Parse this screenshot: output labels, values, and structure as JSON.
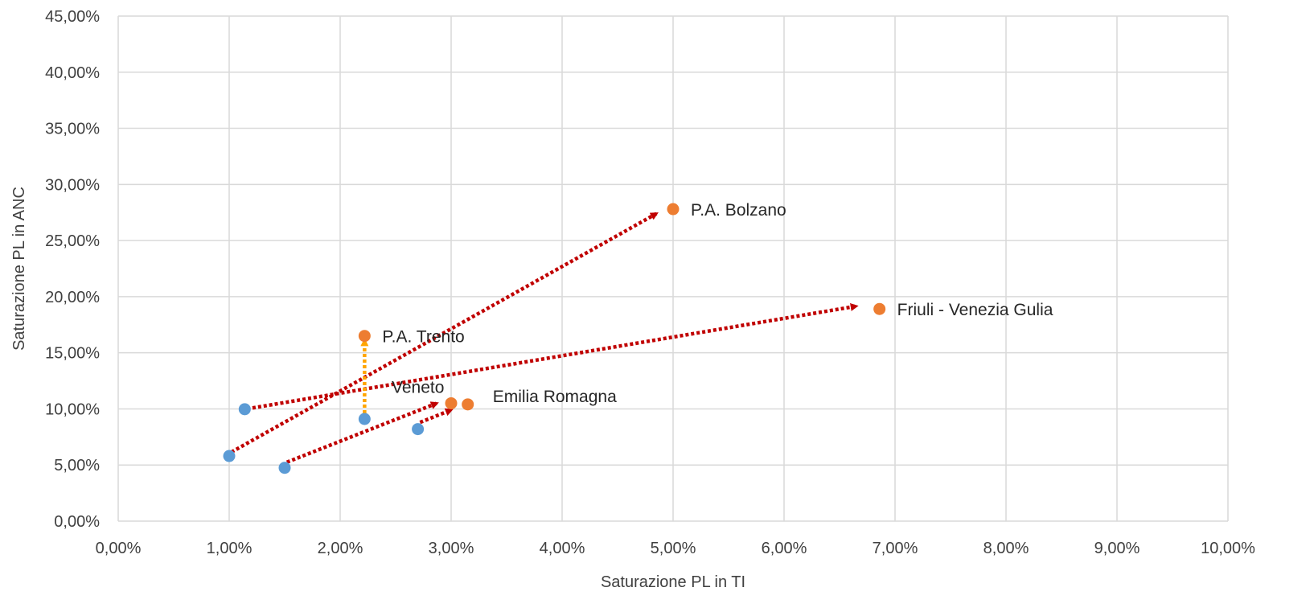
{
  "chart_data": {
    "type": "scatter",
    "title": "",
    "xlabel": "Saturazione PL in TI",
    "ylabel": "Saturazione PL in ANC",
    "xlim": [
      0,
      0.1
    ],
    "ylim": [
      0,
      0.45
    ],
    "x_ticks": [
      "0,00%",
      "1,00%",
      "2,00%",
      "3,00%",
      "4,00%",
      "5,00%",
      "6,00%",
      "7,00%",
      "8,00%",
      "9,00%",
      "10,00%"
    ],
    "y_ticks": [
      "0,00%",
      "5,00%",
      "10,00%",
      "15,00%",
      "20,00%",
      "25,00%",
      "30,00%",
      "35,00%",
      "40,00%",
      "45,00%"
    ],
    "grid": true,
    "legend": "none",
    "colors": {
      "series_1": "#5b9bd5",
      "series_2": "#ed7d31",
      "arrow_main": "#c00000",
      "arrow_trento": "#ffa500",
      "grid": "#d9d9d9"
    },
    "series": [
      {
        "color": "#5b9bd5",
        "points": [
          {
            "x": 0.0114,
            "y": 0.0997
          },
          {
            "x": 0.01,
            "y": 0.058
          },
          {
            "x": 0.015,
            "y": 0.0475
          },
          {
            "x": 0.0222,
            "y": 0.091
          },
          {
            "x": 0.027,
            "y": 0.082
          }
        ]
      },
      {
        "color": "#ed7d31",
        "points": [
          {
            "x": 0.05,
            "y": 0.278,
            "label": "P.A. Bolzano"
          },
          {
            "x": 0.0686,
            "y": 0.189,
            "label": "Friuli - Venezia Gulia"
          },
          {
            "x": 0.0222,
            "y": 0.165,
            "label": "P.A. Trento"
          },
          {
            "x": 0.03,
            "y": 0.105,
            "label": "Veneto"
          },
          {
            "x": 0.0315,
            "y": 0.104,
            "label": "Emilia Romagna"
          }
        ]
      }
    ],
    "arrows": [
      {
        "from": [
          0.0116,
          0.1
        ],
        "to": [
          0.0665,
          0.1915
        ],
        "color": "#c00000"
      },
      {
        "from": [
          0.0102,
          0.0615
        ],
        "to": [
          0.0485,
          0.274
        ],
        "color": "#c00000"
      },
      {
        "from": [
          0.0152,
          0.0525
        ],
        "to": [
          0.0287,
          0.105
        ],
        "color": "#c00000"
      },
      {
        "from": [
          0.0272,
          0.088
        ],
        "to": [
          0.03,
          0.099
        ],
        "color": "#c00000"
      },
      {
        "from": [
          0.0222,
          0.096
        ],
        "to": [
          0.0222,
          0.161
        ],
        "color": "#ffa500"
      }
    ]
  }
}
